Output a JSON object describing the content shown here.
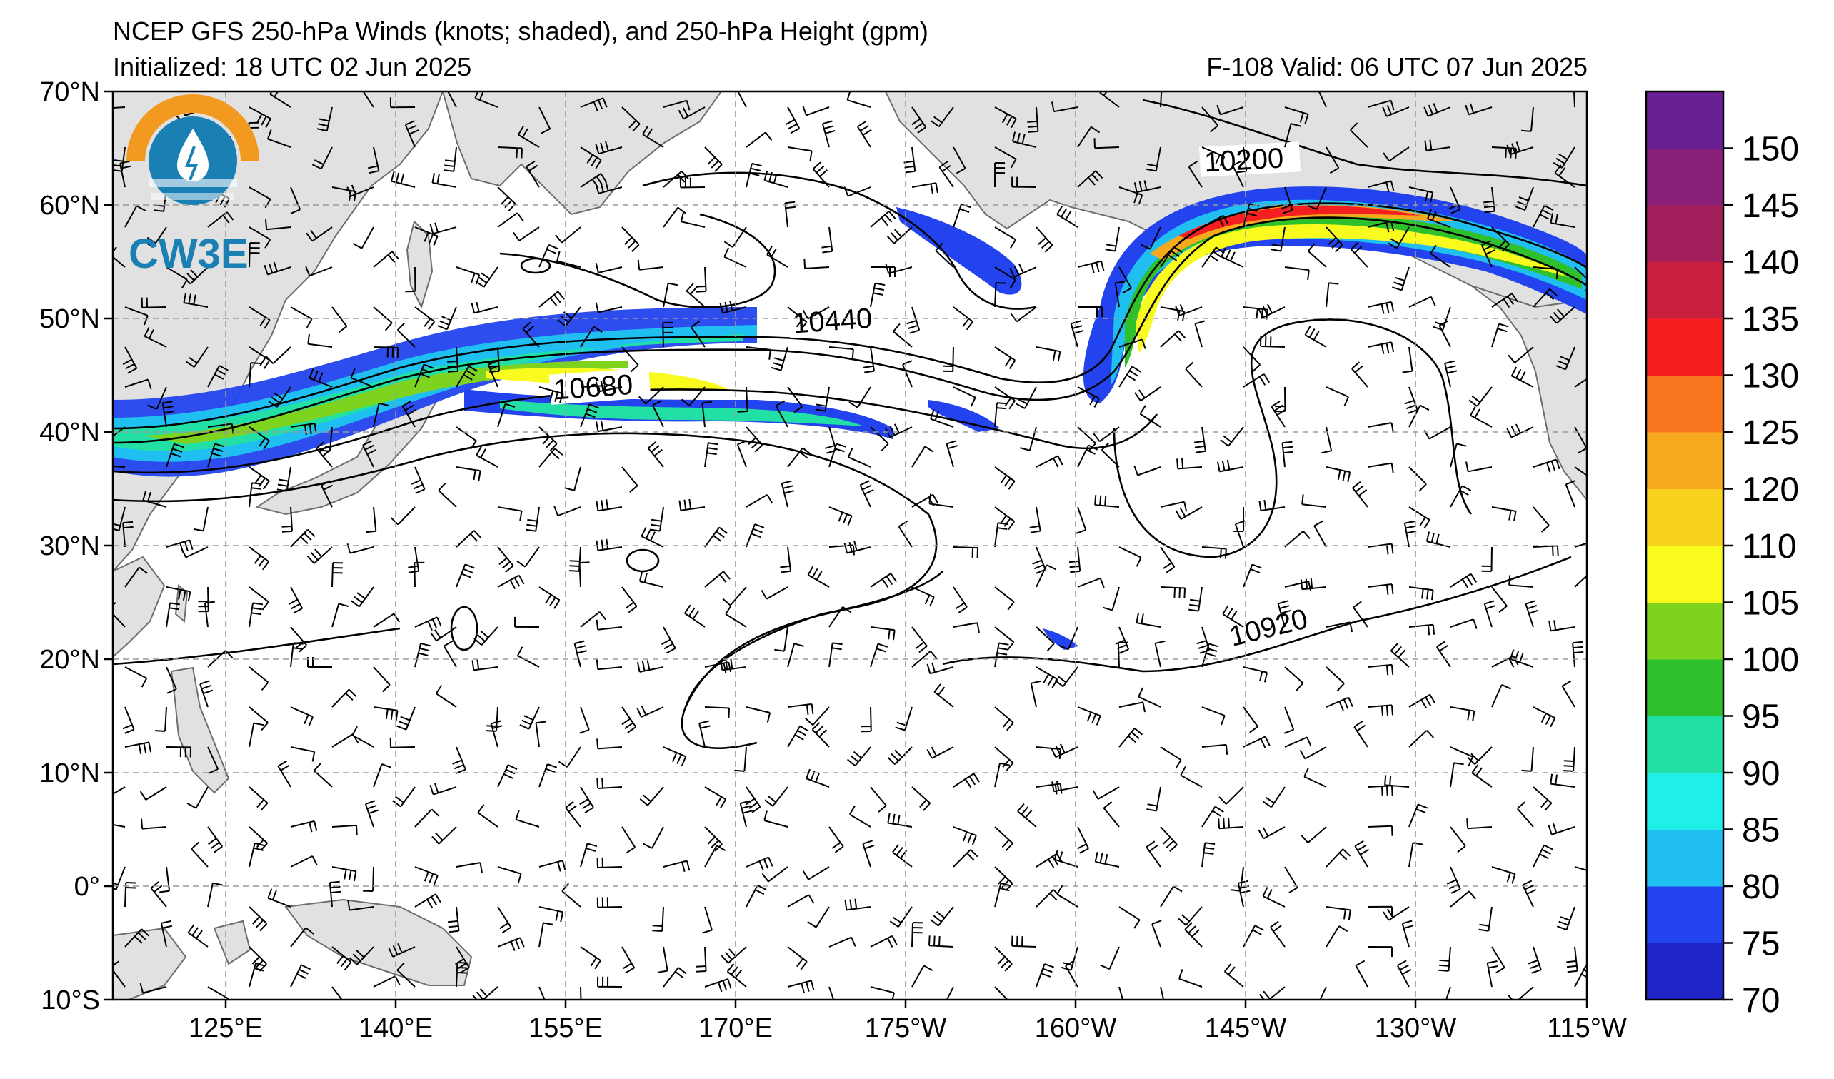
{
  "header": {
    "title": "NCEP GFS 250-hPa Winds (knots; shaded), and 250-hPa Height (gpm)",
    "initialized": "Initialized: 18 UTC 02 Jun 2025",
    "valid": "F-108  Valid: 06 UTC 07 Jun 2025"
  },
  "logo": {
    "text": "CW3E"
  },
  "map": {
    "lat_labels": [
      "70°N",
      "60°N",
      "50°N",
      "40°N",
      "30°N",
      "20°N",
      "10°N",
      "0°",
      "10°S"
    ],
    "lon_labels": [
      "125°E",
      "140°E",
      "155°E",
      "170°E",
      "175°W",
      "160°W",
      "145°W",
      "130°W",
      "115°W"
    ],
    "contour_labels": [
      "10200",
      "10440",
      "10680",
      "10920"
    ],
    "colors": {
      "land": "#e1e1e1",
      "coast": "#6e6e6e",
      "grid": "#9a9a9a",
      "contour": "#000000"
    }
  },
  "colorbar": {
    "labels": [
      "70",
      "75",
      "80",
      "85",
      "90",
      "95",
      "100",
      "105",
      "110",
      "120",
      "125",
      "130",
      "135",
      "140",
      "145",
      "150"
    ],
    "colors": [
      "#1f24c9",
      "#2243ee",
      "#20bff2",
      "#20eee9",
      "#22e0a5",
      "#2ec12b",
      "#7ed31f",
      "#f9fb1f",
      "#f9d21e",
      "#f7a91e",
      "#f7761e",
      "#f51f1f",
      "#c91f3f",
      "#a31f5c",
      "#8a1f79",
      "#6a1f95"
    ]
  }
}
